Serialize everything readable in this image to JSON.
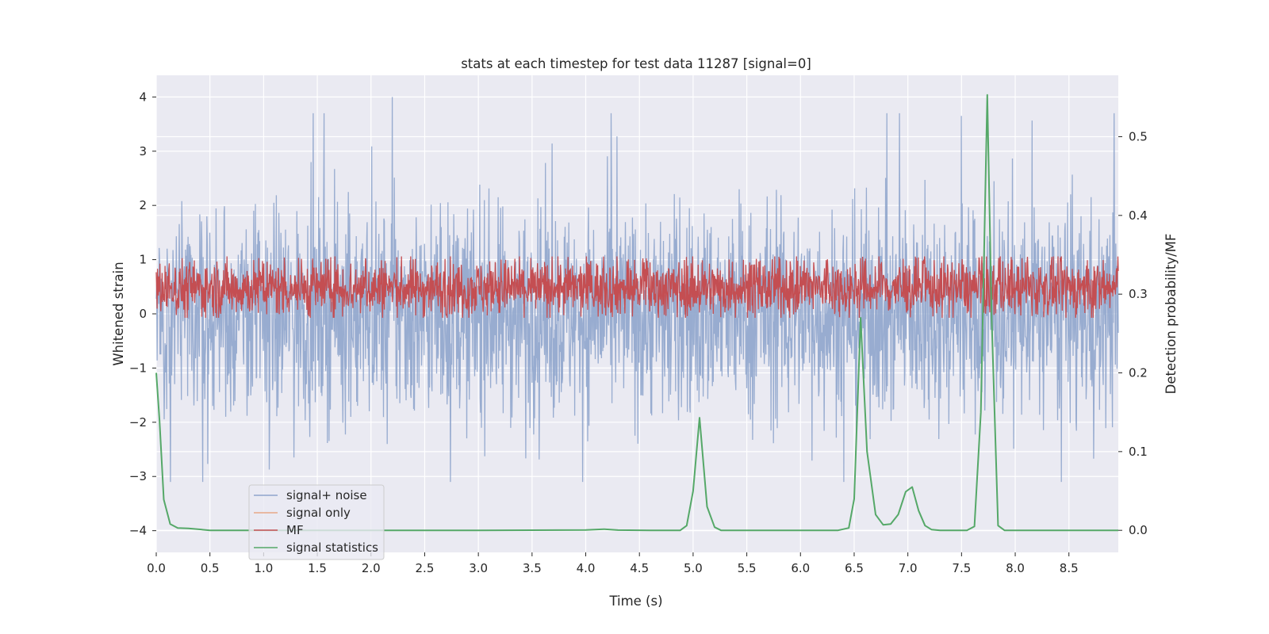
{
  "chart_data": {
    "type": "line",
    "title": "stats at each timestep for test data 11287 [signal=0]",
    "xlabel": "Time (s)",
    "ylabel_left": "Whitened strain",
    "ylabel_right": "Detection probability/MF",
    "xlim": [
      0.0,
      8.96
    ],
    "ylim_left": [
      -4.4,
      4.4
    ],
    "ylim_right": [
      -0.028,
      0.578
    ],
    "x_ticks": [
      0.0,
      0.5,
      1.0,
      1.5,
      2.0,
      2.5,
      3.0,
      3.5,
      4.0,
      4.5,
      5.0,
      5.5,
      6.0,
      6.5,
      7.0,
      7.5,
      8.0,
      8.5
    ],
    "x_tick_labels": [
      "0.0",
      "0.5",
      "1.0",
      "1.5",
      "2.0",
      "2.5",
      "3.0",
      "3.5",
      "4.0",
      "4.5",
      "5.0",
      "5.5",
      "6.0",
      "6.5",
      "7.0",
      "7.5",
      "8.0",
      "8.5"
    ],
    "y_ticks_left": [
      4,
      3,
      2,
      1,
      0,
      -1,
      -2,
      -3,
      -4
    ],
    "y_tick_labels_left": [
      "4",
      "3",
      "2",
      "1",
      "0",
      "−1",
      "−2",
      "−3",
      "−4"
    ],
    "y_ticks_right": [
      0.5,
      0.4,
      0.3,
      0.2,
      0.1,
      0.0
    ],
    "y_tick_labels_right": [
      "0.5",
      "0.4",
      "0.3",
      "0.2",
      "0.1",
      "0.0"
    ],
    "grid": true,
    "legend": {
      "location": "lower-left",
      "entries": [
        "signal+ noise",
        "signal only",
        "MF",
        "signal statistics"
      ]
    },
    "series": [
      {
        "name": "signal+ noise",
        "axis": "left",
        "color": "#8fa5cc",
        "kind": "noise-band",
        "sample_count": 2300,
        "approx_range": [
          -3.1,
          4.0
        ],
        "peaks": [
          {
            "x": 2.2,
            "y": 4.0
          },
          {
            "x": 7.5,
            "y": 3.65
          }
        ]
      },
      {
        "name": "signal only",
        "axis": "left",
        "color": "#e8a787",
        "values": []
      },
      {
        "name": "MF",
        "axis": "right",
        "color": "#c44e52",
        "kind": "noise-band",
        "sample_count": 2300,
        "approx_range": [
          0.275,
          0.34
        ]
      },
      {
        "name": "signal statistics",
        "axis": "right",
        "color": "#55a868",
        "x": [
          0.0,
          0.03,
          0.07,
          0.13,
          0.2,
          0.3,
          0.5,
          1.0,
          2.0,
          3.0,
          4.0,
          4.17,
          4.3,
          4.6,
          4.8,
          4.88,
          4.94,
          5.0,
          5.06,
          5.13,
          5.2,
          5.26,
          5.4,
          6.0,
          6.35,
          6.45,
          6.5,
          6.56,
          6.62,
          6.7,
          6.77,
          6.84,
          6.91,
          6.98,
          7.04,
          7.1,
          7.16,
          7.22,
          7.3,
          7.4,
          7.55,
          7.62,
          7.68,
          7.74,
          7.78,
          7.84,
          7.9,
          7.95,
          8.2,
          8.96
        ],
        "y": [
          0.2,
          0.14,
          0.039,
          0.008,
          0.003,
          0.0025,
          0.0,
          0.0,
          0.0,
          0.0,
          0.0005,
          0.0015,
          0.0003,
          0.0,
          0.0,
          0.0,
          0.006,
          0.05,
          0.143,
          0.03,
          0.004,
          0.0,
          0.0,
          0.0,
          0.0,
          0.003,
          0.04,
          0.27,
          0.1,
          0.02,
          0.007,
          0.008,
          0.02,
          0.049,
          0.055,
          0.025,
          0.006,
          0.001,
          0.0,
          0.0,
          0.0,
          0.005,
          0.15,
          0.553,
          0.27,
          0.006,
          0.0,
          0.0,
          0.0,
          0.0
        ]
      }
    ]
  }
}
